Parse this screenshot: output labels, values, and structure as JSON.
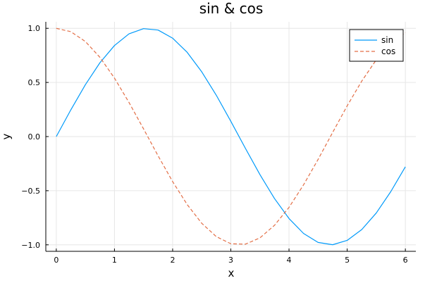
{
  "chart_data": {
    "type": "line",
    "title": "sin & cos",
    "xlabel": "x",
    "ylabel": "y",
    "xlim": [
      -0.18,
      6.18
    ],
    "ylim": [
      -1.06,
      1.06
    ],
    "xticks": [
      0,
      1,
      2,
      3,
      4,
      5,
      6
    ],
    "xtick_labels": [
      "0",
      "1",
      "2",
      "3",
      "4",
      "5",
      "6"
    ],
    "yticks": [
      -1.0,
      -0.5,
      0.0,
      0.5,
      1.0
    ],
    "ytick_labels": [
      "−1.0",
      "−0.5",
      "0.0",
      "0.5",
      "1.0"
    ],
    "grid": true,
    "legend_position": "top-right",
    "x": [
      0,
      0.25,
      0.5,
      0.75,
      1.0,
      1.25,
      1.5,
      1.75,
      2.0,
      2.25,
      2.5,
      2.75,
      3.0,
      3.25,
      3.5,
      3.75,
      4.0,
      4.25,
      4.5,
      4.75,
      5.0,
      5.25,
      5.5,
      5.75,
      6.0
    ],
    "series": [
      {
        "name": "sin",
        "color": "#009AFA",
        "dash": "solid",
        "values": [
          0.0,
          0.247,
          0.479,
          0.682,
          0.841,
          0.949,
          0.997,
          0.984,
          0.909,
          0.778,
          0.598,
          0.382,
          0.141,
          -0.108,
          -0.351,
          -0.572,
          -0.757,
          -0.895,
          -0.978,
          -0.999,
          -0.959,
          -0.859,
          -0.706,
          -0.508,
          -0.279
        ]
      },
      {
        "name": "cos",
        "color": "#E36F47",
        "dash": "dashed",
        "values": [
          1.0,
          0.969,
          0.878,
          0.732,
          0.54,
          0.315,
          0.071,
          -0.178,
          -0.416,
          -0.628,
          -0.801,
          -0.924,
          -0.99,
          -0.994,
          -0.936,
          -0.82,
          -0.654,
          -0.446,
          -0.211,
          0.038,
          0.284,
          0.512,
          0.709,
          0.862,
          0.96
        ]
      }
    ]
  }
}
